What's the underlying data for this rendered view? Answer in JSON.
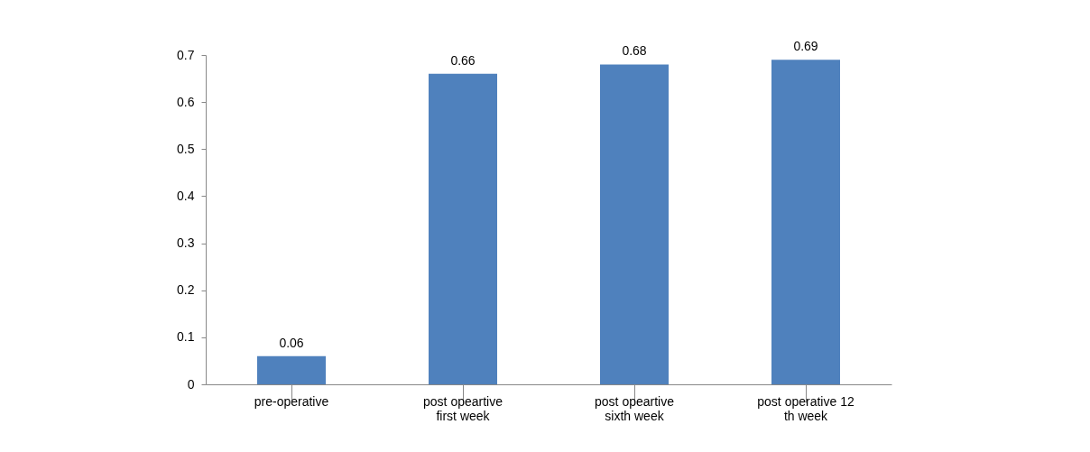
{
  "chart_data": {
    "type": "bar",
    "categories": [
      "pre-operative",
      "post opeartive\nfirst week",
      "post opeartive\nsixth week",
      "post operative 12\nth week"
    ],
    "values": [
      0.06,
      0.66,
      0.68,
      0.69
    ],
    "color": "#4f81bd",
    "ylim": [
      0,
      0.7
    ],
    "yticks": [
      0,
      0.1,
      0.2,
      0.3,
      0.4,
      0.5,
      0.6,
      0.7
    ],
    "data_labels": true
  }
}
